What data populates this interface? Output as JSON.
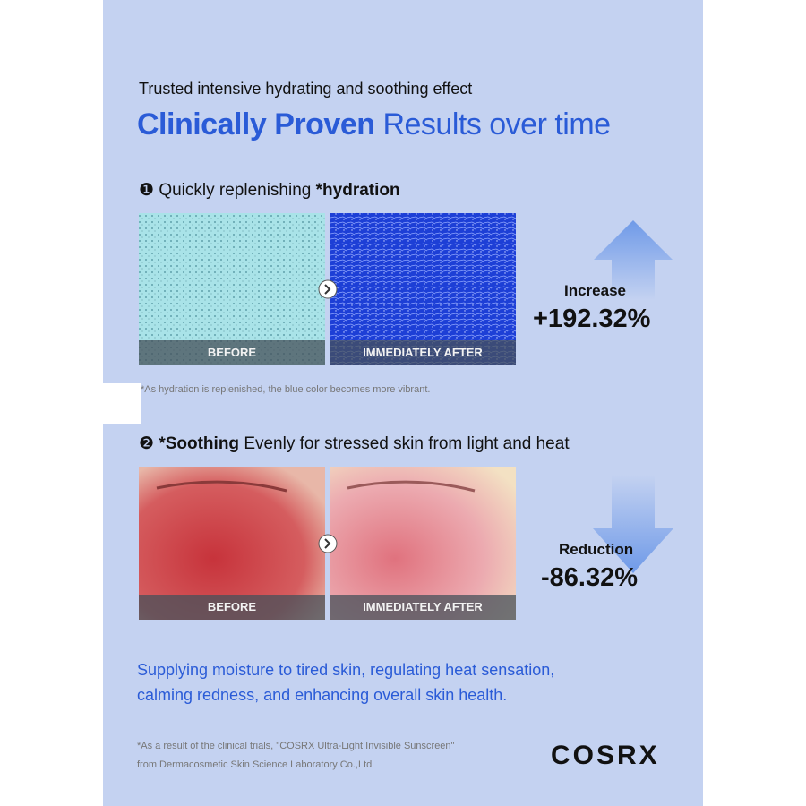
{
  "header": {
    "subtitle": "Trusted intensive hydrating and soothing effect",
    "title_bold": "Clinically Proven",
    "title_rest": "Results over time"
  },
  "sections": [
    {
      "number": "❶",
      "heading_plain": "Quickly replenishing",
      "heading_bold": "*hydration",
      "before_label": "BEFORE",
      "after_label": "IMMEDIATELY AFTER",
      "stat_label": "Increase",
      "stat_value": "+192.32%",
      "note": "*As hydration is replenished, the blue color becomes more vibrant."
    },
    {
      "number": "❷",
      "heading_bold": "*Soothing",
      "heading_plain": "Evenly for stressed skin from light and heat",
      "before_label": "BEFORE",
      "after_label": "IMMEDIATELY AFTER",
      "stat_label": "Reduction",
      "stat_value": "-86.32%"
    }
  ],
  "summary": [
    "Supplying moisture to tired skin, regulating heat sensation,",
    "calming redness, and enhancing overall skin health."
  ],
  "footnote": [
    "*As a result of the clinical trials, \"COSRX Ultra-Light Invisible Sunscreen\"",
    "from Dermacosmetic Skin Science Laboratory Co.,Ltd"
  ],
  "brand": "COSRX"
}
